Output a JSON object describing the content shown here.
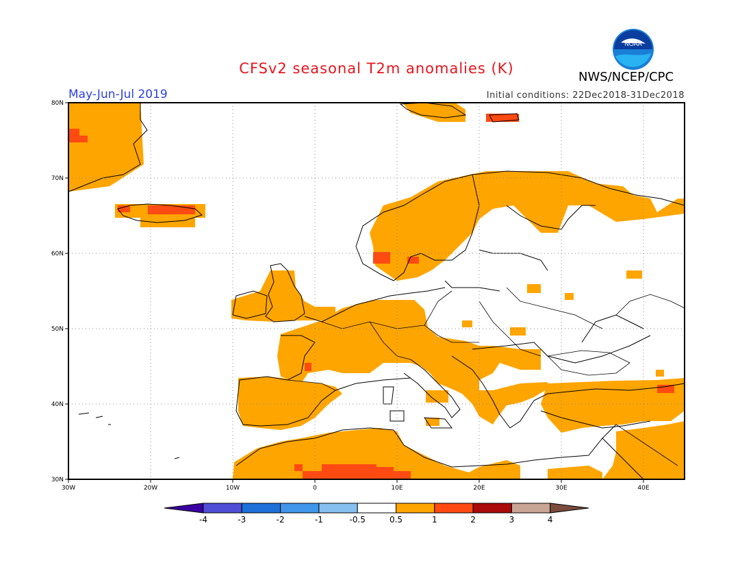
{
  "title": "CFSv2 seasonal T2m anomalies (K)",
  "period": "May-Jun-Jul 2019",
  "initial_conditions": "Initial conditions: 22Dec2018-31Dec2018",
  "agency": "NWS/NCEP/CPC",
  "logo_text": "NOAA",
  "lat_labels": [
    "80N",
    "70N",
    "60N",
    "50N",
    "40N",
    "30N"
  ],
  "lon_labels": [
    "30W",
    "20W",
    "10W",
    "0",
    "10E",
    "20E",
    "30E",
    "40E"
  ],
  "legend": {
    "labels": [
      "-4",
      "-3",
      "-2",
      "-1",
      "-0.5",
      "0.5",
      "1",
      "2",
      "3",
      "4"
    ],
    "colors": [
      "#3a00a0",
      "#4f4fd6",
      "#1e70d9",
      "#3f96ea",
      "#86c0f0",
      "#ffffff",
      "#ffa500",
      "#ff4a12",
      "#a90a0a",
      "#c9a595",
      "#7b4c3e"
    ]
  },
  "colors": {
    "anomaly_0_5_to_1": "#ffa500",
    "anomaly_1_to_2": "#ff4a12",
    "title": "#e8141c",
    "period": "#2b3fe0"
  }
}
